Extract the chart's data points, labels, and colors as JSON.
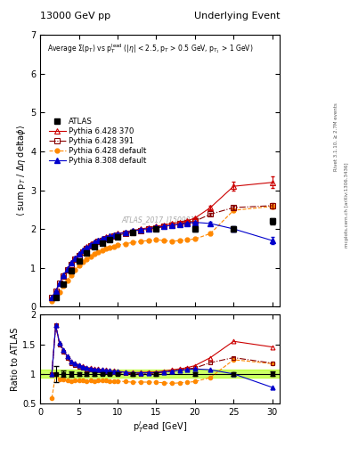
{
  "title_left": "13000 GeV pp",
  "title_right": "Underlying Event",
  "right_label1": "Rivet 3.1.10, ≥ 2.7M events",
  "right_label2": "mcplots.cern.ch [arXiv:1306.3436]",
  "watermark": "ATLAS_2017_I1509919",
  "ylim_main": [
    0,
    7
  ],
  "ylim_ratio": [
    0.5,
    2.0
  ],
  "xlim": [
    0,
    31
  ],
  "atlas_x": [
    2.0,
    3.0,
    4.0,
    5.0,
    6.0,
    7.0,
    8.0,
    9.0,
    10.0,
    12.0,
    15.0,
    20.0,
    25.0,
    30.0
  ],
  "atlas_y": [
    0.22,
    0.57,
    0.93,
    1.18,
    1.38,
    1.53,
    1.63,
    1.72,
    1.8,
    1.92,
    2.0,
    2.0,
    2.0,
    2.2
  ],
  "atlas_yerr": [
    0.03,
    0.03,
    0.04,
    0.04,
    0.04,
    0.04,
    0.04,
    0.04,
    0.04,
    0.05,
    0.05,
    0.06,
    0.06,
    0.08
  ],
  "py6_370_x": [
    1.5,
    2.0,
    2.5,
    3.0,
    3.5,
    4.0,
    4.5,
    5.0,
    5.5,
    6.0,
    6.5,
    7.0,
    7.5,
    8.0,
    8.5,
    9.0,
    9.5,
    10.0,
    11.0,
    12.0,
    13.0,
    14.0,
    15.0,
    16.0,
    17.0,
    18.0,
    19.0,
    20.0,
    22.0,
    25.0,
    30.0
  ],
  "py6_370_y": [
    0.22,
    0.4,
    0.6,
    0.8,
    0.97,
    1.12,
    1.25,
    1.36,
    1.45,
    1.53,
    1.6,
    1.66,
    1.71,
    1.75,
    1.79,
    1.82,
    1.85,
    1.88,
    1.92,
    1.96,
    2.0,
    2.03,
    2.07,
    2.1,
    2.14,
    2.17,
    2.21,
    2.28,
    2.55,
    3.1,
    3.2
  ],
  "py6_370_yerr": [
    0.01,
    0.01,
    0.01,
    0.01,
    0.01,
    0.01,
    0.01,
    0.01,
    0.01,
    0.01,
    0.01,
    0.01,
    0.01,
    0.01,
    0.01,
    0.01,
    0.01,
    0.01,
    0.01,
    0.01,
    0.01,
    0.01,
    0.01,
    0.01,
    0.01,
    0.01,
    0.01,
    0.02,
    0.05,
    0.12,
    0.15
  ],
  "py6_391_x": [
    1.5,
    2.0,
    2.5,
    3.0,
    3.5,
    4.0,
    4.5,
    5.0,
    5.5,
    6.0,
    6.5,
    7.0,
    7.5,
    8.0,
    8.5,
    9.0,
    9.5,
    10.0,
    11.0,
    12.0,
    13.0,
    14.0,
    15.0,
    16.0,
    17.0,
    18.0,
    19.0,
    20.0,
    22.0,
    25.0,
    30.0
  ],
  "py6_391_y": [
    0.22,
    0.4,
    0.59,
    0.78,
    0.95,
    1.09,
    1.21,
    1.32,
    1.41,
    1.49,
    1.56,
    1.62,
    1.67,
    1.71,
    1.75,
    1.78,
    1.81,
    1.84,
    1.88,
    1.92,
    1.95,
    1.99,
    2.02,
    2.06,
    2.1,
    2.13,
    2.17,
    2.2,
    2.38,
    2.55,
    2.6
  ],
  "py6_391_yerr": [
    0.01,
    0.01,
    0.01,
    0.01,
    0.01,
    0.01,
    0.01,
    0.01,
    0.01,
    0.01,
    0.01,
    0.01,
    0.01,
    0.01,
    0.01,
    0.01,
    0.01,
    0.01,
    0.01,
    0.01,
    0.01,
    0.01,
    0.01,
    0.01,
    0.01,
    0.01,
    0.01,
    0.01,
    0.04,
    0.05,
    0.06
  ],
  "py6_def_x": [
    1.5,
    2.0,
    2.5,
    3.0,
    3.5,
    4.0,
    4.5,
    5.0,
    5.5,
    6.0,
    6.5,
    7.0,
    7.5,
    8.0,
    8.5,
    9.0,
    9.5,
    10.0,
    11.0,
    12.0,
    13.0,
    14.0,
    15.0,
    16.0,
    17.0,
    18.0,
    19.0,
    20.0,
    22.0,
    25.0,
    30.0
  ],
  "py6_def_y": [
    0.13,
    0.22,
    0.36,
    0.52,
    0.67,
    0.81,
    0.94,
    1.05,
    1.14,
    1.22,
    1.29,
    1.35,
    1.4,
    1.45,
    1.49,
    1.52,
    1.55,
    1.58,
    1.62,
    1.65,
    1.68,
    1.7,
    1.72,
    1.7,
    1.68,
    1.7,
    1.72,
    1.74,
    1.88,
    2.48,
    2.58
  ],
  "py6_def_yerr": [
    0.01,
    0.01,
    0.01,
    0.01,
    0.01,
    0.01,
    0.01,
    0.01,
    0.01,
    0.01,
    0.01,
    0.01,
    0.01,
    0.01,
    0.01,
    0.01,
    0.01,
    0.01,
    0.01,
    0.01,
    0.01,
    0.01,
    0.01,
    0.01,
    0.01,
    0.01,
    0.01,
    0.01,
    0.04,
    0.05,
    0.06
  ],
  "py8_def_x": [
    1.5,
    2.0,
    2.5,
    3.0,
    3.5,
    4.0,
    4.5,
    5.0,
    5.5,
    6.0,
    6.5,
    7.0,
    7.5,
    8.0,
    8.5,
    9.0,
    9.5,
    10.0,
    11.0,
    12.0,
    13.0,
    14.0,
    15.0,
    16.0,
    17.0,
    18.0,
    19.0,
    20.0,
    22.0,
    25.0,
    30.0
  ],
  "py8_def_y": [
    0.22,
    0.4,
    0.6,
    0.8,
    0.97,
    1.12,
    1.24,
    1.35,
    1.44,
    1.52,
    1.59,
    1.65,
    1.7,
    1.74,
    1.78,
    1.81,
    1.84,
    1.87,
    1.91,
    1.95,
    1.98,
    2.01,
    2.04,
    2.07,
    2.09,
    2.12,
    2.14,
    2.17,
    2.14,
    2.0,
    1.7
  ],
  "py8_def_yerr": [
    0.01,
    0.01,
    0.01,
    0.01,
    0.01,
    0.01,
    0.01,
    0.01,
    0.01,
    0.01,
    0.01,
    0.01,
    0.01,
    0.01,
    0.01,
    0.01,
    0.01,
    0.01,
    0.01,
    0.01,
    0.01,
    0.01,
    0.01,
    0.01,
    0.01,
    0.01,
    0.01,
    0.02,
    0.05,
    0.06,
    0.1
  ],
  "color_atlas": "#000000",
  "color_py6_370": "#cc0000",
  "color_py6_391": "#880000",
  "color_py6_def": "#ff8800",
  "color_py8_def": "#0000cc",
  "band_color": "#aaff00",
  "band_alpha": 0.6,
  "band_half": 0.07,
  "yticks_main": [
    0,
    1,
    2,
    3,
    4,
    5,
    6,
    7
  ],
  "yticks_ratio": [
    0.5,
    1.0,
    1.5,
    2.0
  ],
  "xticks": [
    0,
    5,
    10,
    15,
    20,
    25,
    30
  ]
}
